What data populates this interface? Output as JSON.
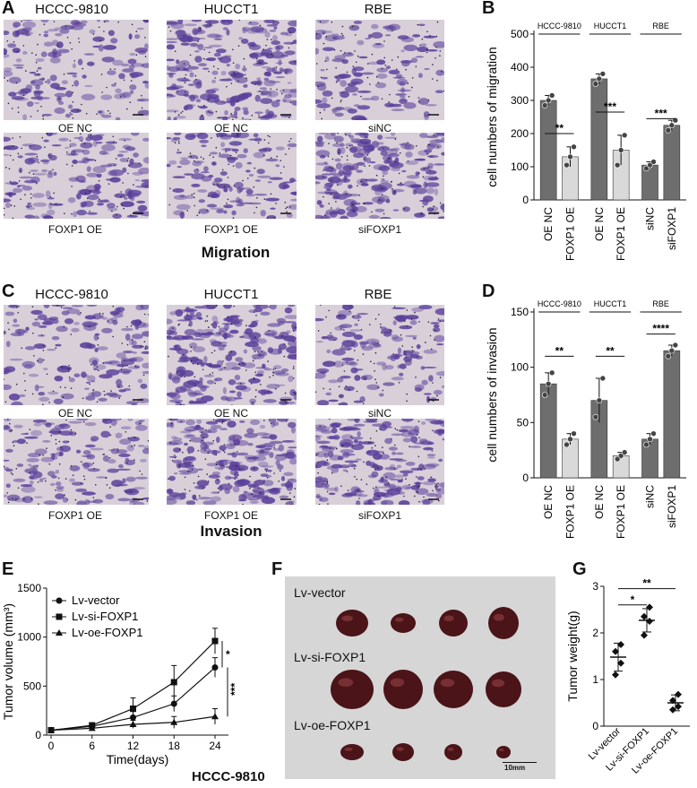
{
  "figure": {
    "panels": {
      "A": {
        "letter": "A",
        "col_heads": [
          "HCCC-9810",
          "HUCCT1",
          "RBE"
        ],
        "top_captions": [
          "OE NC",
          "OE NC",
          "siNC"
        ],
        "bottom_captions": [
          "FOXP1 OE",
          "FOXP1 OE",
          "siFOXP1"
        ],
        "title": "Migration"
      },
      "C": {
        "letter": "C",
        "col_heads": [
          "HCCC-9810",
          "HUCCT1",
          "RBE"
        ],
        "top_captions": [
          "OE NC",
          "OE NC",
          "siNC"
        ],
        "bottom_captions": [
          "FOXP1 OE",
          "FOXP1 OE",
          "siFOXP1"
        ],
        "title": "Invasion"
      },
      "B": {
        "letter": "B"
      },
      "D": {
        "letter": "D"
      },
      "E": {
        "letter": "E",
        "footer": "HCCC-9810"
      },
      "F": {
        "letter": "F",
        "rows": [
          "Lv-vector",
          "Lv-si-FOXP1",
          "Lv-oe-FOXP1"
        ],
        "scale": "10mm"
      },
      "G": {
        "letter": "G"
      }
    },
    "colors": {
      "stain_bg": "#d8cfd9",
      "stain_dark": "#5a3f9a",
      "bar_dark": "#6e6e6e",
      "bar_light": "#d9d9d9",
      "photo_bg": "#d6d6d6",
      "tumor": "#4a1418"
    }
  },
  "chart_data": [
    {
      "id": "B",
      "type": "bar",
      "ylabel": "cell numbers of migration",
      "ylim": [
        0,
        500
      ],
      "yticks": [
        0,
        100,
        200,
        300,
        400,
        500
      ],
      "categories": [
        "OE NC",
        "FOXP1 OE",
        "OE NC",
        "FOXP1 OE",
        "siNC",
        "siFOXP1"
      ],
      "values": [
        300,
        130,
        365,
        150,
        105,
        225
      ],
      "errors": [
        15,
        30,
        15,
        45,
        10,
        15
      ],
      "points": [
        [
          285,
          300,
          315
        ],
        [
          105,
          130,
          160
        ],
        [
          350,
          365,
          380
        ],
        [
          105,
          150,
          195
        ],
        [
          95,
          105,
          115
        ],
        [
          210,
          225,
          240
        ]
      ],
      "groups": [
        {
          "name": "HCCC-9810",
          "span": [
            0,
            1
          ]
        },
        {
          "name": "HUCCT1",
          "span": [
            2,
            3
          ]
        },
        {
          "name": "RBE",
          "span": [
            4,
            5
          ]
        }
      ],
      "significance": [
        {
          "pair": [
            0,
            1
          ],
          "label": "**",
          "y": 200
        },
        {
          "pair": [
            2,
            3
          ],
          "label": "***",
          "y": 265
        },
        {
          "pair": [
            4,
            5
          ],
          "label": "***",
          "y": 245
        }
      ],
      "bar_shades": [
        "dark",
        "light",
        "dark",
        "light",
        "dark",
        "dark"
      ]
    },
    {
      "id": "D",
      "type": "bar",
      "ylabel": "cell numbers of invasion",
      "ylim": [
        0,
        150
      ],
      "yticks": [
        0,
        50,
        100,
        150
      ],
      "categories": [
        "OE NC",
        "FOXP1 OE",
        "OE NC",
        "FOXP1 OE",
        "siNC",
        "siFOXP1"
      ],
      "values": [
        85,
        35,
        70,
        20,
        35,
        115
      ],
      "errors": [
        10,
        5,
        20,
        3,
        5,
        5
      ],
      "points": [
        [
          75,
          85,
          95
        ],
        [
          30,
          35,
          40
        ],
        [
          55,
          70,
          90
        ],
        [
          17,
          20,
          23
        ],
        [
          30,
          35,
          40
        ],
        [
          110,
          115,
          120
        ]
      ],
      "groups": [
        {
          "name": "HCCC-9810",
          "span": [
            0,
            1
          ]
        },
        {
          "name": "HUCCT1",
          "span": [
            2,
            3
          ]
        },
        {
          "name": "RBE",
          "span": [
            4,
            5
          ]
        }
      ],
      "significance": [
        {
          "pair": [
            0,
            1
          ],
          "label": "**",
          "y": 110
        },
        {
          "pair": [
            2,
            3
          ],
          "label": "**",
          "y": 110
        },
        {
          "pair": [
            4,
            5
          ],
          "label": "****",
          "y": 130
        }
      ],
      "bar_shades": [
        "dark",
        "light",
        "dark",
        "light",
        "dark",
        "dark"
      ]
    },
    {
      "id": "E",
      "type": "line",
      "xlabel": "Time(days)",
      "ylabel": "Tumor volume (mm³)",
      "x": [
        0,
        6,
        12,
        18,
        24
      ],
      "xticks": [
        0,
        6,
        12,
        18,
        24
      ],
      "ylim": [
        0,
        1500
      ],
      "yticks": [
        0,
        500,
        1000,
        1500
      ],
      "series": [
        {
          "name": "Lv-vector",
          "marker": "circle",
          "values": [
            50,
            90,
            180,
            320,
            690
          ],
          "errors": [
            10,
            20,
            60,
            80,
            100
          ]
        },
        {
          "name": "Lv-si-FOXP1",
          "marker": "square",
          "values": [
            50,
            100,
            270,
            540,
            960
          ],
          "errors": [
            10,
            20,
            110,
            170,
            130
          ]
        },
        {
          "name": "Lv-oe-FOXP1",
          "marker": "triangle",
          "values": [
            50,
            70,
            110,
            130,
            190
          ],
          "errors": [
            10,
            15,
            40,
            60,
            80
          ]
        }
      ],
      "significance": [
        {
          "label": "*",
          "from": 690,
          "to": 960
        },
        {
          "label": "***",
          "from": 190,
          "to": 690
        }
      ]
    },
    {
      "id": "G",
      "type": "scatter",
      "ylabel": "Tumor weight(g)",
      "ylim": [
        0,
        3
      ],
      "yticks": [
        0,
        1,
        2,
        3
      ],
      "categories": [
        "Lv-vector",
        "Lv-si-FOXP1",
        "Lv-oe-FOXP1"
      ],
      "means": [
        1.48,
        2.27,
        0.5
      ],
      "sd": [
        0.3,
        0.25,
        0.17
      ],
      "points": [
        [
          1.1,
          1.35,
          1.6,
          1.75
        ],
        [
          1.95,
          2.25,
          2.35,
          2.55
        ],
        [
          0.35,
          0.42,
          0.55,
          0.68
        ]
      ],
      "significance": [
        {
          "pair": [
            0,
            1
          ],
          "label": "*",
          "y": 2.6
        },
        {
          "pair": [
            0,
            2
          ],
          "label": "**",
          "y": 2.95
        }
      ]
    }
  ]
}
